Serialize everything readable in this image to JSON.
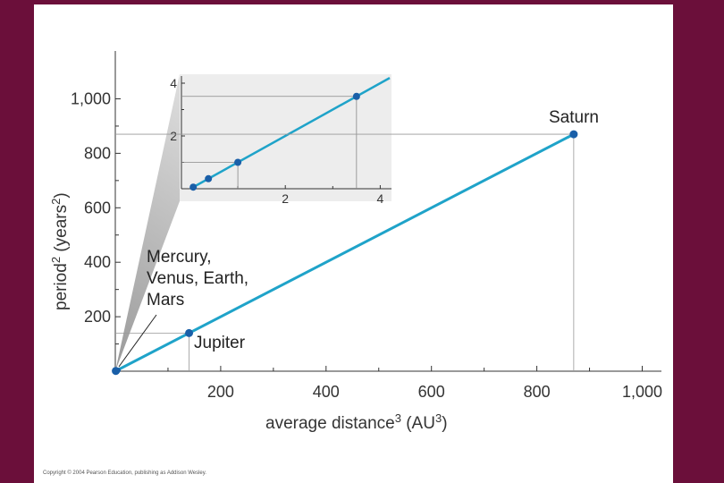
{
  "chart_data": [
    {
      "type": "line",
      "name": "main",
      "xlabel": "average distance",
      "xlabel_sup": "3",
      "xlabel_unit": " (AU",
      "xlabel_unit_sup": "3",
      "xlabel_close": ")",
      "ylabel": "period",
      "ylabel_sup": "2",
      "ylabel_unit": " (years",
      "ylabel_unit_sup": "2",
      "ylabel_close": ")",
      "xlim": [
        0,
        1030
      ],
      "ylim": [
        0,
        1150
      ],
      "xticks": [
        200,
        400,
        600,
        800,
        1000
      ],
      "xtick_labels": [
        "200",
        "400",
        "600",
        "800",
        "1,000"
      ],
      "yticks": [
        200,
        400,
        600,
        800,
        1000
      ],
      "ytick_labels": [
        "200",
        "400",
        "600",
        "800",
        "1,000"
      ],
      "line": {
        "x": [
          0,
          870
        ],
        "y": [
          0,
          870
        ]
      },
      "points": [
        {
          "label": "Mercury, Venus, Earth, Mars",
          "x": 1,
          "y": 1
        },
        {
          "label": "Jupiter",
          "x": 140,
          "y": 140
        },
        {
          "label": "Saturn",
          "x": 870,
          "y": 870
        }
      ],
      "labels": {
        "saturn": "Saturn",
        "jupiter": "Jupiter",
        "inner": [
          "Mercury,",
          "Venus, Earth,",
          "Mars"
        ]
      },
      "line_color": "#1fa3c9",
      "point_color": "#1a5fa8"
    },
    {
      "type": "line",
      "name": "inset",
      "xlim": [
        0,
        4.2
      ],
      "ylim": [
        0,
        4.2
      ],
      "xticks": [
        2,
        4
      ],
      "xtick_labels": [
        "2",
        "4"
      ],
      "yticks": [
        2,
        4
      ],
      "ytick_labels": [
        "2",
        "4"
      ],
      "line": {
        "x": [
          0,
          4.2
        ],
        "y": [
          0,
          4.2
        ]
      },
      "points": [
        {
          "x": 0.06,
          "y": 0.06
        },
        {
          "x": 0.38,
          "y": 0.38
        },
        {
          "x": 1.0,
          "y": 1.0
        },
        {
          "x": 3.5,
          "y": 3.5
        }
      ]
    }
  ],
  "copyright": "Copyright © 2004 Pearson Education, publishing as Addison Wesley."
}
